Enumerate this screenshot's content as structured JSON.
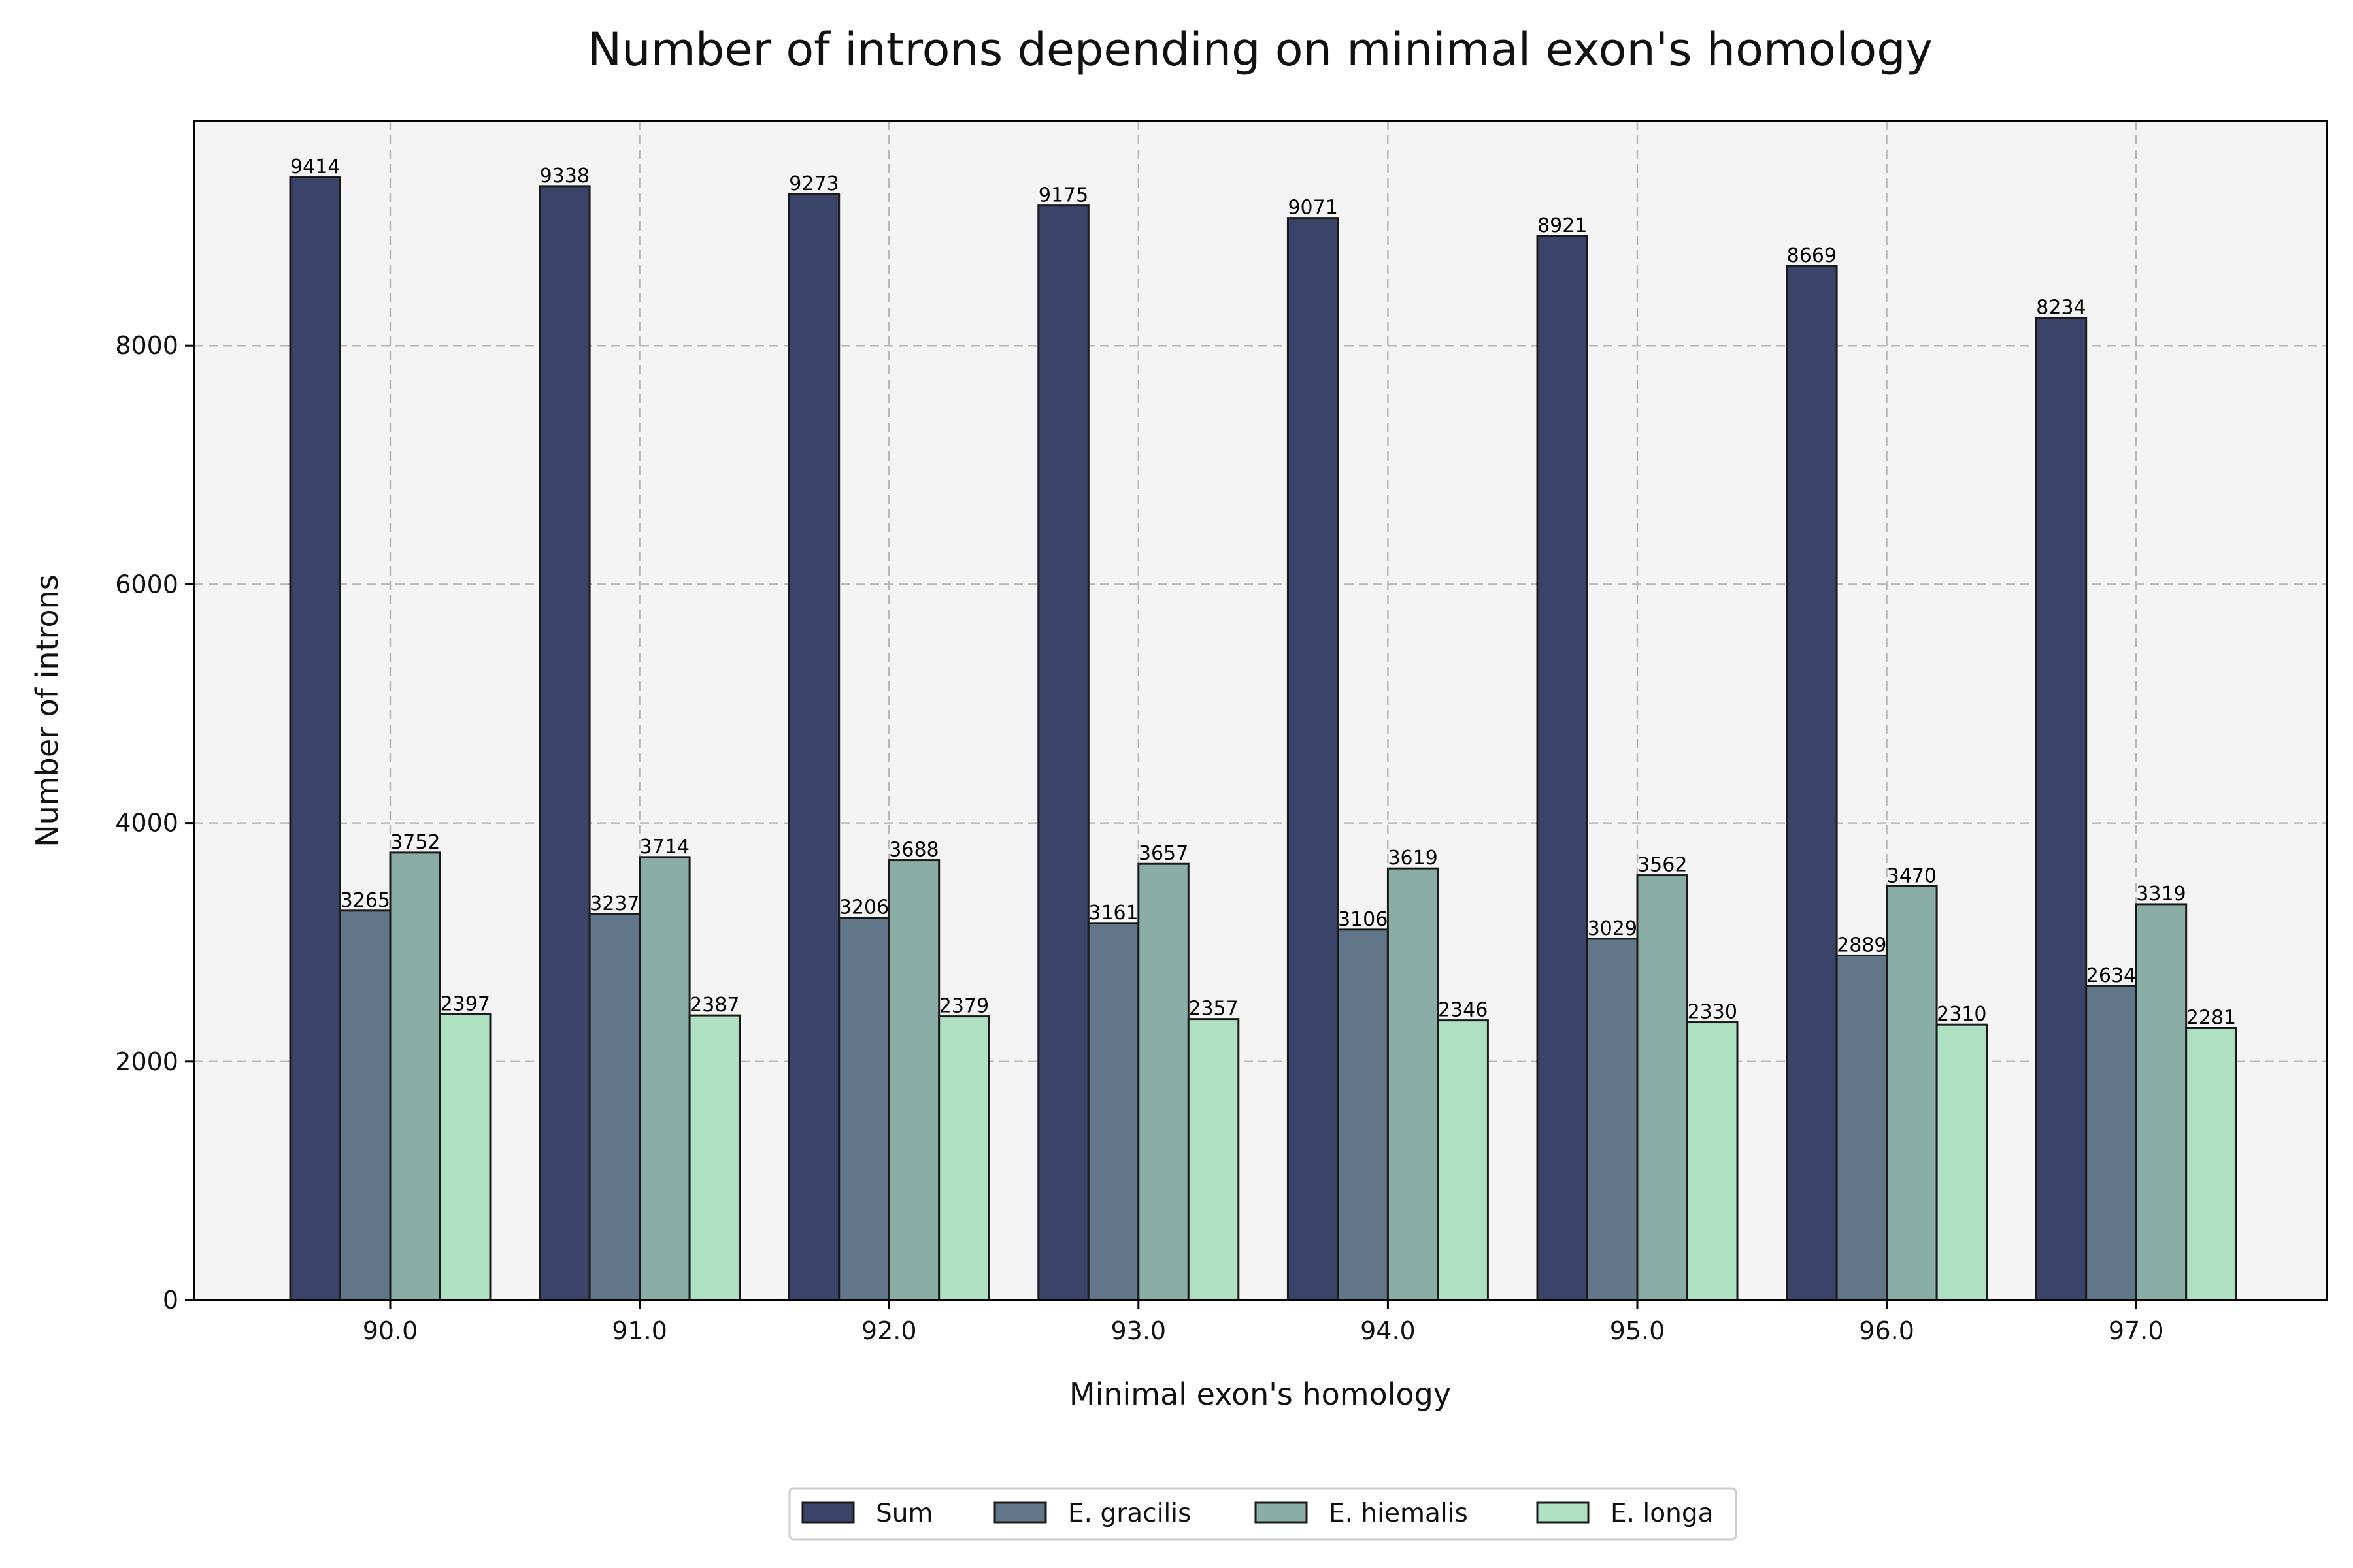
{
  "colors": {
    "Sum": "#3a4468",
    "E. gracilis": "#627689",
    "E. hiemalis": "#8aada6",
    "E. longa": "#b0e0c2",
    "plot_background": "#f4f4f4",
    "grid": "#b8b8b8"
  },
  "chart_data": {
    "type": "bar",
    "title": "Number of introns depending on minimal exon's homology",
    "xlabel": "Minimal exon's homology",
    "ylabel": "Number of introns",
    "categories": [
      "90.0",
      "91.0",
      "92.0",
      "93.0",
      "94.0",
      "95.0",
      "96.0",
      "97.0"
    ],
    "series": [
      {
        "name": "Sum",
        "values": [
          9414,
          9338,
          9273,
          9175,
          9071,
          8921,
          8669,
          8234
        ]
      },
      {
        "name": "E. gracilis",
        "values": [
          3265,
          3237,
          3206,
          3161,
          3106,
          3029,
          2889,
          2634
        ]
      },
      {
        "name": "E. hiemalis",
        "values": [
          3752,
          3714,
          3688,
          3657,
          3619,
          3562,
          3470,
          3319
        ]
      },
      {
        "name": "E. longa",
        "values": [
          2397,
          2387,
          2379,
          2357,
          2346,
          2330,
          2310,
          2281
        ]
      }
    ],
    "yticks": [
      0,
      2000,
      4000,
      6000,
      8000
    ],
    "ylim": [
      0,
      9885
    ],
    "grid": true,
    "legend_position": "bottom-center",
    "data_labels": true
  }
}
